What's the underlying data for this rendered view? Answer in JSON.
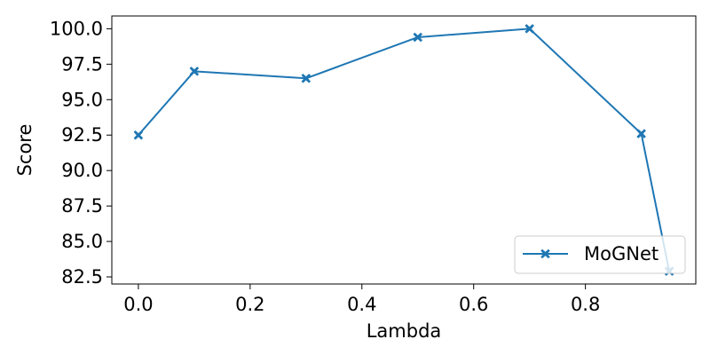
{
  "chart_data": {
    "type": "line",
    "title": "",
    "xlabel": "Lambda",
    "ylabel": "Score",
    "xlim": [
      -0.0475,
      0.9975
    ],
    "ylim": [
      82.0,
      100.9
    ],
    "grid": false,
    "legend_position": "lower-right",
    "x_ticks": [
      0.0,
      0.2,
      0.4,
      0.6,
      0.8
    ],
    "x_tick_labels": [
      "0.0",
      "0.2",
      "0.4",
      "0.6",
      "0.8"
    ],
    "y_ticks": [
      82.5,
      85.0,
      87.5,
      90.0,
      92.5,
      95.0,
      97.5,
      100.0
    ],
    "y_tick_labels": [
      "82.5",
      "85.0",
      "87.5",
      "90.0",
      "92.5",
      "95.0",
      "97.5",
      "100.0"
    ],
    "series": [
      {
        "name": "MoGNet",
        "color": "#1f77b4",
        "marker": "x-filled",
        "x": [
          0.0,
          0.1,
          0.3,
          0.5,
          0.7,
          0.9,
          0.95
        ],
        "y": [
          92.5,
          97.0,
          96.5,
          99.4,
          100.0,
          92.6,
          82.9
        ]
      }
    ]
  }
}
